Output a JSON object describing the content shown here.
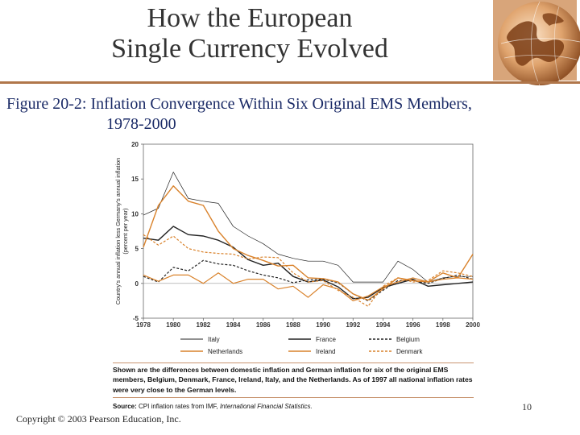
{
  "slide": {
    "title_line1": "How the European",
    "title_line2": "Single Currency Evolved",
    "figure_label": "Figure 20-2",
    "figure_caption_rest": ": Inflation Convergence Within Six Original EMS Members,",
    "figure_caption_line2": "1978-2000",
    "page_number": "10",
    "copyright": "Copyright © 2003 Pearson Education, Inc.",
    "note": "Shown are the differences between domestic inflation and German inflation for six of the original EMS members, Belgium, Denmark, France, Ireland, Italy, and the Netherlands. As of 1997 all national inflation rates were very close to the German levels.",
    "source_label": "Source:",
    "source_text": " CPI inflation rates from IMF, ",
    "source_italic": "International Financial Statistics."
  },
  "colors": {
    "black": "#222222",
    "orange": "#d9822b",
    "rule": "#b0764a"
  },
  "chart_data": {
    "type": "line",
    "ylabel": "Country's annual inflation less Germany's annual inflation (percent per year)",
    "ylim": [
      -5,
      20
    ],
    "xlim": [
      1978,
      2000
    ],
    "yticks": [
      "-5",
      "0",
      "5",
      "10",
      "15",
      "20"
    ],
    "xticks": [
      "1978",
      "1980",
      "1982",
      "1984",
      "1986",
      "1988",
      "1990",
      "1992",
      "1994",
      "1996",
      "1998",
      "2000"
    ],
    "grid": false,
    "legend_position": "bottom",
    "x": [
      1978,
      1979,
      1980,
      1981,
      1982,
      1983,
      1984,
      1985,
      1986,
      1987,
      1988,
      1989,
      1990,
      1991,
      1992,
      1993,
      1994,
      1995,
      1996,
      1997,
      1998,
      1999,
      2000
    ],
    "series": [
      {
        "name": "Italy",
        "color": "#222222",
        "dash": "solid",
        "width": 0.7,
        "values": [
          9.8,
          10.8,
          16.0,
          12.2,
          11.8,
          11.5,
          8.2,
          6.8,
          5.7,
          4.2,
          3.6,
          3.2,
          3.2,
          2.6,
          0.2,
          0.2,
          0.2,
          3.2,
          2.0,
          0.2,
          0.8,
          1.0,
          1.0
        ]
      },
      {
        "name": "France",
        "color": "#222222",
        "dash": "solid",
        "width": 1.4,
        "values": [
          6.5,
          6.2,
          8.2,
          7.0,
          6.8,
          6.2,
          5.2,
          3.4,
          2.6,
          2.9,
          1.0,
          0.2,
          0.5,
          -0.5,
          -2.2,
          -2.0,
          -0.6,
          0.0,
          0.6,
          -0.4,
          -0.2,
          0.0,
          0.2
        ]
      },
      {
        "name": "Belgium",
        "color": "#222222",
        "dash": "dashed",
        "width": 1.2,
        "values": [
          1.0,
          0.2,
          2.3,
          1.8,
          3.3,
          2.8,
          2.6,
          1.8,
          1.2,
          0.8,
          0.1,
          0.5,
          0.6,
          0.1,
          -1.5,
          -2.5,
          -1.0,
          0.4,
          0.4,
          0.0,
          0.7,
          1.2,
          0.6
        ]
      },
      {
        "name": "Netherlands",
        "color": "#d9822b",
        "dash": "solid",
        "width": 1.2,
        "values": [
          1.2,
          0.3,
          1.2,
          1.2,
          0.0,
          1.5,
          0.0,
          0.6,
          0.6,
          -0.8,
          -0.4,
          -2.0,
          -0.2,
          -0.8,
          -2.5,
          -1.8,
          -0.5,
          0.2,
          0.8,
          0.2,
          0.6,
          0.8,
          0.6
        ]
      },
      {
        "name": "Ireland",
        "color": "#d9822b",
        "dash": "solid",
        "width": 1.4,
        "values": [
          5.2,
          11.2,
          14.0,
          11.8,
          11.2,
          7.5,
          5.0,
          4.0,
          3.3,
          2.5,
          2.6,
          0.8,
          0.7,
          0.2,
          -1.5,
          -2.4,
          -0.8,
          0.8,
          0.4,
          0.2,
          1.5,
          0.8,
          4.2
        ]
      },
      {
        "name": "Denmark",
        "color": "#d9822b",
        "dash": "dashed",
        "width": 1.2,
        "values": [
          7.0,
          5.5,
          6.8,
          5.0,
          4.5,
          4.3,
          4.2,
          3.5,
          3.8,
          3.7,
          1.5,
          0.2,
          0.4,
          -1.0,
          -2.0,
          -3.3,
          -0.4,
          0.8,
          0.2,
          0.4,
          1.8,
          1.5,
          1.0
        ]
      }
    ]
  }
}
